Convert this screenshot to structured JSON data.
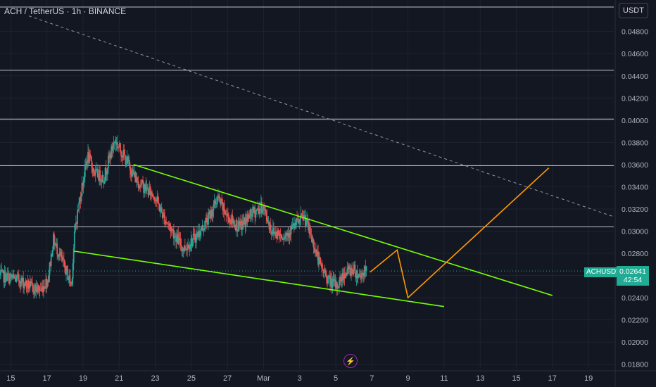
{
  "header": {
    "title": "ACH / TetherUS · 1h · BINANCE",
    "currency": "USDT"
  },
  "badges": {
    "symbol": "ACHUSDT",
    "price": "0.02641",
    "countdown": "42:54"
  },
  "icons": {
    "alert": "lightning-icon"
  },
  "colors": {
    "background": "#131722",
    "up": "#26a69a",
    "down": "#ef5350",
    "wedge": "#76ff03",
    "projection": "#ff9800",
    "levels": "#d1d4dc",
    "badge": "#22ab94"
  },
  "chart_data": {
    "type": "candlestick",
    "title": "ACH / TetherUS · 1h · BINANCE",
    "x_tick_labels": [
      "15",
      "17",
      "19",
      "21",
      "23",
      "25",
      "27",
      "Mar",
      "3",
      "5",
      "7",
      "9",
      "11",
      "13",
      "15",
      "17",
      "19"
    ],
    "x_tick_days": [
      -14,
      -12,
      -10,
      -8,
      -6,
      -4,
      -2,
      0,
      2,
      4,
      6,
      8,
      10,
      12,
      14,
      16,
      18
    ],
    "x_range_days": [
      -14.6,
      19.4
    ],
    "y_tick_labels": [
      "0.04800",
      "0.04600",
      "0.04400",
      "0.04200",
      "0.04000",
      "0.03800",
      "0.03600",
      "0.03400",
      "0.03200",
      "0.03000",
      "0.02800",
      "0.02600",
      "0.02400",
      "0.02200",
      "0.02000",
      "0.01800"
    ],
    "ylim": [
      0.0176,
      0.0502
    ],
    "last_price": 0.02641,
    "price_path": [
      [
        -14.6,
        0.026
      ],
      [
        -13.5,
        0.0256
      ],
      [
        -12.8,
        0.0249
      ],
      [
        -12.3,
        0.0247
      ],
      [
        -11.9,
        0.0257
      ],
      [
        -11.6,
        0.0292
      ],
      [
        -11.1,
        0.0272
      ],
      [
        -10.6,
        0.0252
      ],
      [
        -10.4,
        0.0303
      ],
      [
        -10.0,
        0.0342
      ],
      [
        -9.7,
        0.0368
      ],
      [
        -9.3,
        0.0352
      ],
      [
        -8.8,
        0.0348
      ],
      [
        -8.5,
        0.0366
      ],
      [
        -8.2,
        0.0382
      ],
      [
        -7.7,
        0.0368
      ],
      [
        -7.0,
        0.0346
      ],
      [
        -6.4,
        0.0337
      ],
      [
        -6.0,
        0.0332
      ],
      [
        -5.5,
        0.0313
      ],
      [
        -5.0,
        0.03
      ],
      [
        -4.4,
        0.0284
      ],
      [
        -4.0,
        0.029
      ],
      [
        -3.4,
        0.0301
      ],
      [
        -2.9,
        0.0315
      ],
      [
        -2.5,
        0.033
      ],
      [
        -2.0,
        0.0314
      ],
      [
        -1.3,
        0.0303
      ],
      [
        -0.6,
        0.0316
      ],
      [
        0.0,
        0.0322
      ],
      [
        0.5,
        0.03
      ],
      [
        1.2,
        0.0296
      ],
      [
        1.9,
        0.0307
      ],
      [
        2.3,
        0.0313
      ],
      [
        2.7,
        0.0294
      ],
      [
        3.2,
        0.0268
      ],
      [
        3.7,
        0.0255
      ],
      [
        4.1,
        0.025
      ],
      [
        4.5,
        0.0262
      ],
      [
        5.0,
        0.0266
      ],
      [
        5.3,
        0.026
      ],
      [
        5.7,
        0.0264
      ]
    ],
    "horizontal_levels": [
      0.0502,
      0.0445,
      0.0401,
      0.0359,
      0.0304
    ],
    "trend_lines": [
      {
        "kind": "wedge-upper",
        "points": [
          [
            -7.2,
            0.036
          ],
          [
            16.0,
            0.0242
          ]
        ]
      },
      {
        "kind": "wedge-lower",
        "points": [
          [
            -10.5,
            0.0282
          ],
          [
            10.0,
            0.0232
          ]
        ]
      },
      {
        "kind": "dashed-resistance",
        "points": [
          [
            -13.0,
            0.0494
          ],
          [
            19.4,
            0.0313
          ]
        ]
      }
    ],
    "projection_path": [
      [
        5.9,
        0.0263
      ],
      [
        7.4,
        0.0283
      ],
      [
        8.0,
        0.024
      ],
      [
        15.8,
        0.0357
      ]
    ],
    "grid": true,
    "legend": "none"
  }
}
